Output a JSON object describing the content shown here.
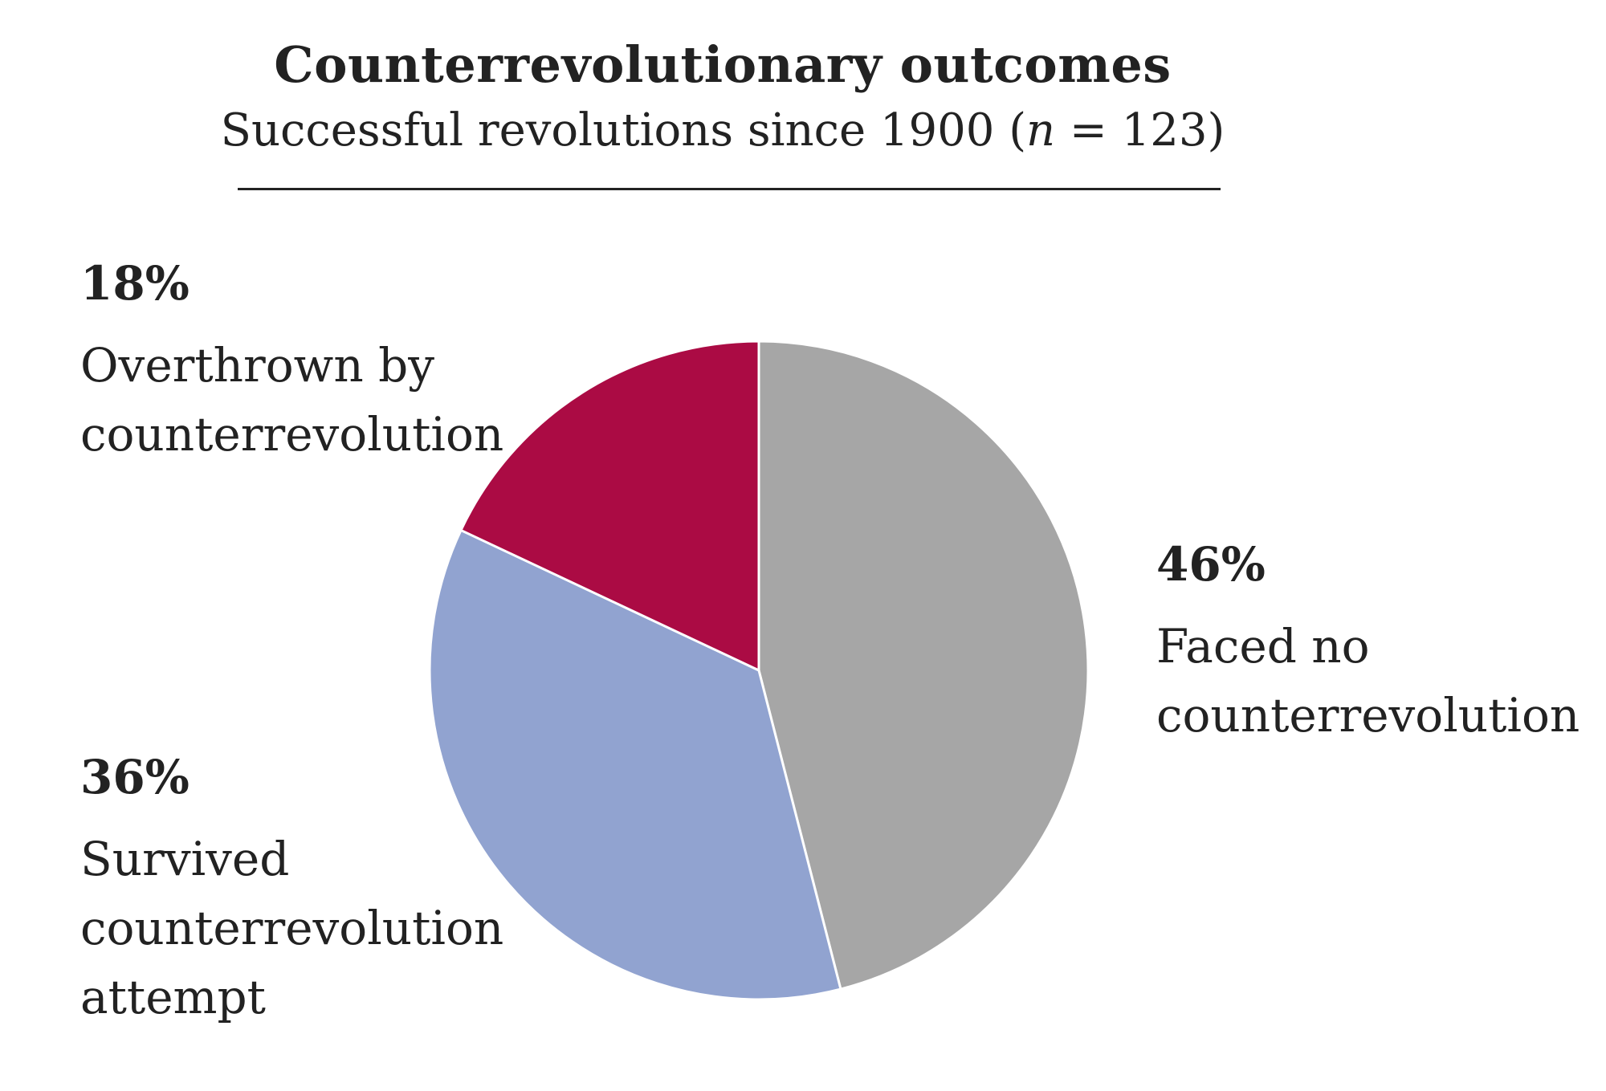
{
  "chart_data": {
    "type": "pie",
    "title": "Counterrevolutionary outcomes",
    "subtitle_main": "Successful revolutions since 1900 (",
    "subtitle_n": "n",
    "subtitle_rest": " = 123)",
    "slices": [
      {
        "label": "Faced no\ncounterrevolution",
        "percent_label": "46%",
        "value": 46,
        "color": "#a6a6a6"
      },
      {
        "label": "Survived\ncounterrevolution\nattempt",
        "percent_label": "36%",
        "value": 36,
        "color": "#91a3d0"
      },
      {
        "label": "Overthrown by\ncounterrevolution",
        "percent_label": "18%",
        "value": 18,
        "color": "#ab0b44"
      }
    ],
    "start": "12 o'clock",
    "direction": "clockwise"
  }
}
